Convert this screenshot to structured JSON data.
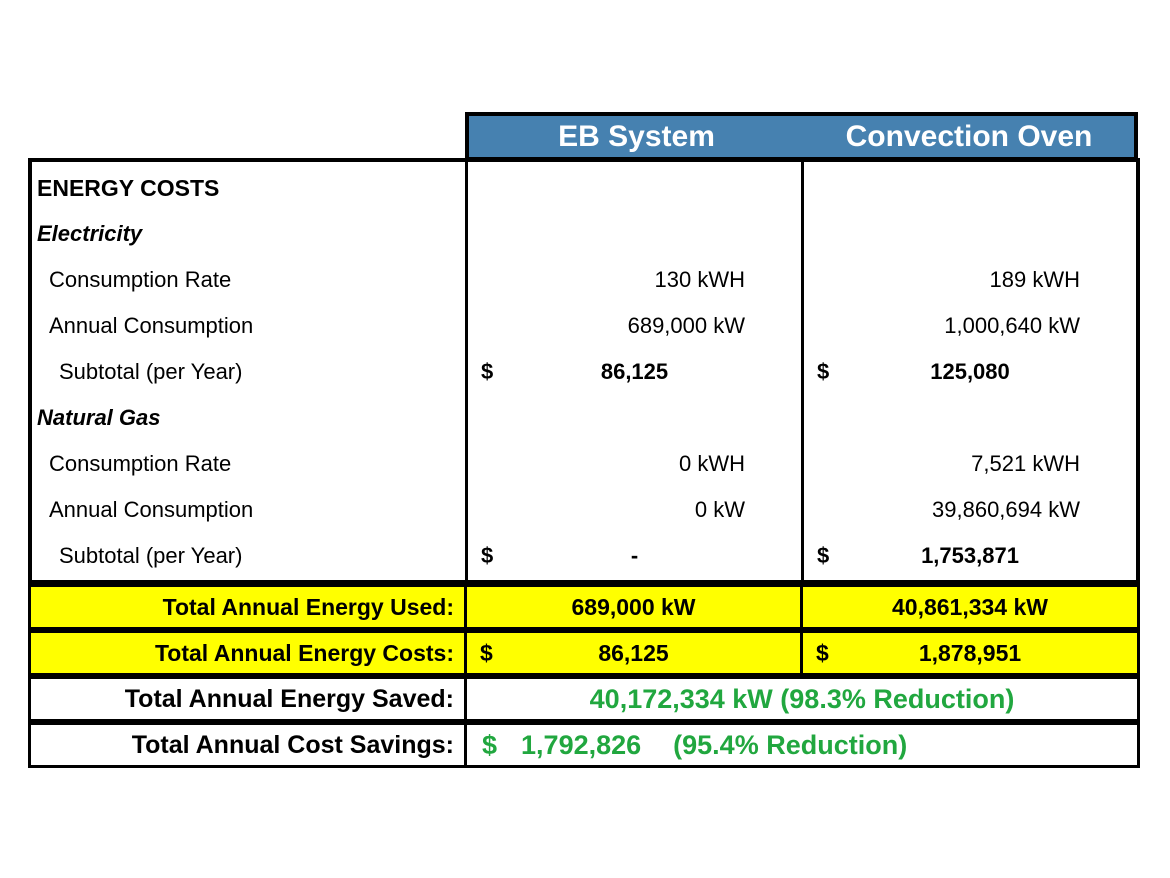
{
  "columns": [
    "EB System",
    "Convection Oven"
  ],
  "section_title": "ENERGY COSTS",
  "electricity": {
    "heading": "Electricity",
    "consumption_rate": {
      "label": "Consumption Rate",
      "eb": "130 kWH",
      "oven": "189 kWH"
    },
    "annual_consumption": {
      "label": "Annual Consumption",
      "eb": "689,000 kW",
      "oven": "1,000,640 kW"
    },
    "subtotal": {
      "label": "Subtotal (per Year)",
      "currency": "$",
      "eb": "86,125",
      "oven": "125,080"
    }
  },
  "natural_gas": {
    "heading": "Natural Gas",
    "consumption_rate": {
      "label": "Consumption Rate",
      "eb": "0 kWH",
      "oven": "7,521 kWH"
    },
    "annual_consumption": {
      "label": "Annual Consumption",
      "eb": "0 kW",
      "oven": "39,860,694 kW"
    },
    "subtotal": {
      "label": "Subtotal (per Year)",
      "currency": "$",
      "eb": "-",
      "oven": "1,753,871"
    }
  },
  "totals": {
    "energy_used": {
      "label": "Total Annual Energy Used:",
      "eb": "689,000 kW",
      "oven": "40,861,334 kW"
    },
    "energy_costs": {
      "label": "Total Annual Energy Costs:",
      "currency": "$",
      "eb": "86,125",
      "oven": "1,878,951"
    },
    "energy_saved": {
      "label": "Total Annual Energy Saved:",
      "value": "40,172,334 kW (98.3% Reduction)"
    },
    "cost_savings": {
      "label": "Total Annual Cost Savings:",
      "currency": "$",
      "amount": "1,792,826",
      "reduction": "(95.4% Reduction)"
    }
  },
  "colors": {
    "header_bg": "#4681B0",
    "header_text": "#FFFFFF",
    "highlight_yellow": "#FFFF00",
    "savings_green": "#21A73F",
    "border": "#000000"
  },
  "chart_data": {
    "type": "table",
    "columns": [
      "",
      "EB System",
      "Convection Oven"
    ],
    "rows": [
      [
        "ENERGY COSTS",
        "",
        ""
      ],
      [
        "Electricity",
        "",
        ""
      ],
      [
        "Consumption Rate",
        "130 kWH",
        "189 kWH"
      ],
      [
        "Annual Consumption",
        "689,000 kW",
        "1,000,640 kW"
      ],
      [
        "Subtotal (per Year)",
        "$ 86,125",
        "$ 125,080"
      ],
      [
        "Natural Gas",
        "",
        ""
      ],
      [
        "Consumption Rate",
        "0 kWH",
        "7,521 kWH"
      ],
      [
        "Annual Consumption",
        "0 kW",
        "39,860,694 kW"
      ],
      [
        "Subtotal (per Year)",
        "$ -",
        "$ 1,753,871"
      ],
      [
        "Total Annual Energy Used:",
        "689,000 kW",
        "40,861,334 kW"
      ],
      [
        "Total Annual Energy Costs:",
        "$ 86,125",
        "$ 1,878,951"
      ],
      [
        "Total Annual Energy Saved:",
        "40,172,334 kW (98.3% Reduction)",
        ""
      ],
      [
        "Total Annual Cost Savings:",
        "$ 1,792,826 (95.4% Reduction)",
        ""
      ]
    ]
  }
}
